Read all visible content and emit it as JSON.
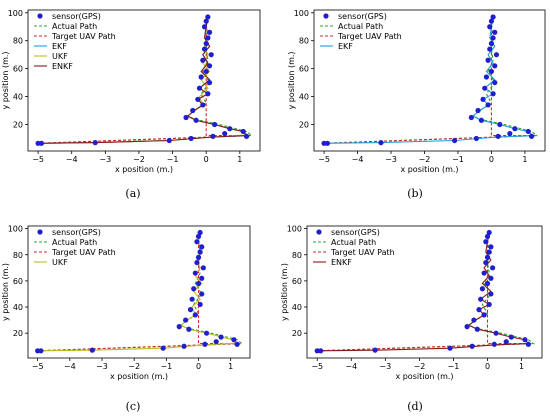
{
  "chart_data": [
    {
      "type": "line",
      "caption": "(a)",
      "xlabel": "x position (m.)",
      "ylabel": "y position (m.)",
      "xlim": [
        -5.3,
        1.6
      ],
      "ylim": [
        1,
        102
      ],
      "xticks": [
        -5,
        -4,
        -3,
        -2,
        -1,
        0,
        1
      ],
      "yticks": [
        20,
        40,
        60,
        80,
        100
      ],
      "legend_position": "top-left",
      "legend": [
        "sensor(GPS)",
        "Actual Path",
        "Target UAV Path",
        "EKF",
        "UKF",
        "ENKF"
      ],
      "series_ids": [
        "gps",
        "actual",
        "target",
        "ekf",
        "ukf",
        "enkf"
      ]
    },
    {
      "type": "line",
      "caption": "(b)",
      "xlabel": "x position (m.)",
      "ylabel": "y position (m.)",
      "xlim": [
        -5.3,
        1.6
      ],
      "ylim": [
        1,
        102
      ],
      "xticks": [
        -5,
        -4,
        -3,
        -2,
        -1,
        0,
        1
      ],
      "yticks": [
        20,
        40,
        60,
        80,
        100
      ],
      "legend_position": "top-left",
      "legend": [
        "sensor(GPS)",
        "Actual Path",
        "Target UAV Path",
        "EKF"
      ],
      "series_ids": [
        "gps",
        "actual",
        "target",
        "ekf"
      ]
    },
    {
      "type": "line",
      "caption": "(c)",
      "xlabel": "x position (m.)",
      "ylabel": "y position (m.)",
      "xlim": [
        -5.3,
        1.6
      ],
      "ylim": [
        1,
        102
      ],
      "xticks": [
        -5,
        -4,
        -3,
        -2,
        -1,
        0,
        1
      ],
      "yticks": [
        20,
        40,
        60,
        80,
        100
      ],
      "legend_position": "top-left",
      "legend": [
        "sensor(GPS)",
        "Actual Path",
        "Target UAV Path",
        "UKF"
      ],
      "series_ids": [
        "gps",
        "actual",
        "target",
        "ukf"
      ]
    },
    {
      "type": "line",
      "caption": "(d)",
      "xlabel": "x position (m.)",
      "ylabel": "y position (m.)",
      "xlim": [
        -5.3,
        1.6
      ],
      "ylim": [
        1,
        102
      ],
      "xticks": [
        -5,
        -4,
        -3,
        -2,
        -1,
        0,
        1
      ],
      "yticks": [
        20,
        40,
        60,
        80,
        100
      ],
      "legend_position": "top-left",
      "legend": [
        "sensor(GPS)",
        "Actual Path",
        "Target UAV Path",
        "ENKF"
      ],
      "series_ids": [
        "gps",
        "actual",
        "target",
        "enkf"
      ]
    }
  ],
  "series_data": {
    "gps": {
      "color": "#1f1fcf",
      "x": [
        -5.0,
        -4.9,
        -3.3,
        -1.1,
        -0.45,
        0.2,
        0.55,
        1.1,
        1.2,
        0.7,
        0.25,
        -0.3,
        -0.6,
        -0.4,
        -0.1,
        -0.25,
        0.05,
        -0.2,
        0.1,
        -0.15,
        0.0,
        0.1,
        -0.1,
        0.15,
        -0.05,
        0.0,
        0.05,
        0.1,
        -0.05,
        0.0,
        0.05
      ],
      "y": [
        6.5,
        6.5,
        7.0,
        8.5,
        10.0,
        11.5,
        13.5,
        15.0,
        11.5,
        17.0,
        20.0,
        23.0,
        25.0,
        30.0,
        34.0,
        38.0,
        42.0,
        46.0,
        50.0,
        54.0,
        58.0,
        62.0,
        66.0,
        70.0,
        74.0,
        78.0,
        82.0,
        86.0,
        90.0,
        94.0,
        97.0
      ]
    },
    "actual": {
      "color": "#2ca02c",
      "x": [
        -5.0,
        1.35,
        1.2,
        0.8,
        0.3,
        -0.3,
        -0.55,
        -0.35,
        0.0,
        -0.15,
        0.1,
        -0.1,
        0.05,
        0.0,
        0.05,
        0.0,
        0.02
      ],
      "y": [
        6.5,
        12.0,
        15.0,
        17.5,
        20.5,
        23.5,
        26.0,
        30.0,
        35.0,
        42.0,
        50.0,
        58.0,
        66.0,
        74.0,
        82.0,
        90.0,
        98.0
      ]
    },
    "target": {
      "color": "#d62728",
      "x": [
        -5.0,
        1.3,
        0.0,
        0.0
      ],
      "y": [
        6.5,
        12.0,
        12.0,
        98.0
      ]
    },
    "ekf": {
      "color": "#1f9fdf",
      "x": [
        -5.0,
        -3.3,
        -1.1,
        0.2,
        1.25,
        1.1,
        0.7,
        0.25,
        -0.3,
        -0.55,
        -0.35,
        -0.1,
        -0.25,
        0.05,
        -0.2,
        0.1,
        -0.15,
        0.05,
        -0.1,
        0.1,
        -0.05,
        0.0,
        0.05
      ],
      "y": [
        6.5,
        7.0,
        8.5,
        11.0,
        12.0,
        15.0,
        17.0,
        20.0,
        23.0,
        26.0,
        30.0,
        34.0,
        38.0,
        42.0,
        46.0,
        52.0,
        58.0,
        64.0,
        70.0,
        76.0,
        82.0,
        90.0,
        97.0
      ]
    },
    "ukf": {
      "color": "#bcbd22",
      "x": [
        -5.0,
        -3.3,
        -1.1,
        0.2,
        1.2,
        1.05,
        0.65,
        0.25,
        -0.3,
        -0.55,
        -0.35,
        -0.1,
        -0.2,
        0.05,
        -0.15,
        0.1,
        -0.1,
        0.05,
        -0.05,
        0.1,
        0.0,
        0.05
      ],
      "y": [
        6.5,
        7.0,
        8.5,
        11.0,
        12.5,
        15.0,
        17.5,
        20.0,
        23.0,
        26.0,
        30.0,
        34.0,
        40.0,
        46.0,
        52.0,
        58.0,
        64.0,
        70.0,
        76.0,
        84.0,
        90.0,
        97.0
      ]
    },
    "enkf": {
      "color": "#8b1a1a",
      "x": [
        -5.0,
        -3.3,
        -1.1,
        0.2,
        1.2,
        1.1,
        0.7,
        0.25,
        -0.3,
        -0.55,
        -0.35,
        -0.1,
        -0.25,
        0.05,
        -0.2,
        0.1,
        -0.15,
        0.05,
        -0.1,
        0.1,
        -0.05,
        0.0,
        0.05
      ],
      "y": [
        6.5,
        7.0,
        8.5,
        11.0,
        12.0,
        15.0,
        17.0,
        20.0,
        23.0,
        26.0,
        30.0,
        34.0,
        38.0,
        42.0,
        46.0,
        52.0,
        58.0,
        64.0,
        70.0,
        76.0,
        82.0,
        90.0,
        97.0
      ]
    }
  },
  "legend_labels": {
    "gps": "sensor(GPS)",
    "actual": "Actual Path",
    "target": "Target UAV Path",
    "ekf": "EKF",
    "ukf": "UKF",
    "enkf": "ENKF"
  }
}
